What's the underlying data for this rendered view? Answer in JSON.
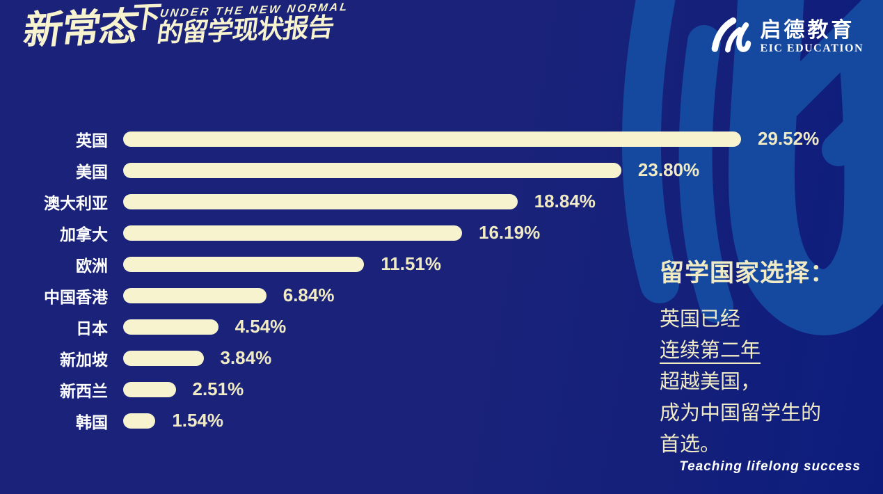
{
  "header": {
    "title_part1": "新常态",
    "title_part2": "下",
    "subtitle_en": "UNDER THE NEW NORMAL",
    "title_part3": "的留学现状报告"
  },
  "logo": {
    "name_cn": "启德教育",
    "name_en": "EIC EDUCATION"
  },
  "chart_data": {
    "type": "bar",
    "orientation": "horizontal",
    "categories": [
      "英国",
      "美国",
      "澳大利亚",
      "加拿大",
      "欧洲",
      "中国香港",
      "日本",
      "新加坡",
      "新西兰",
      "韩国"
    ],
    "values": [
      29.52,
      23.8,
      18.84,
      16.19,
      11.51,
      6.84,
      4.54,
      3.84,
      2.51,
      1.54
    ],
    "value_labels": [
      "29.52%",
      "23.80%",
      "18.84%",
      "16.19%",
      "11.51%",
      "6.84%",
      "4.54%",
      "3.84%",
      "2.51%",
      "1.54%"
    ],
    "xlim": [
      0,
      30
    ],
    "grid": false,
    "legend": "none",
    "bar_color": "#f7f3cf",
    "label_color": "#ffffff",
    "value_color": "#f0ebc4"
  },
  "aside": {
    "title": "留学国家选择：",
    "lines": [
      {
        "text": "英国已经",
        "underline": false
      },
      {
        "text": "连续第二年",
        "underline": true
      },
      {
        "text": "超越美国，",
        "underline": false
      },
      {
        "text": "成为中国留学生的",
        "underline": false
      },
      {
        "text": "首选。",
        "underline": false
      }
    ]
  },
  "footer": {
    "tagline": "Teaching lifelong success"
  },
  "colors": {
    "background": "#1a2379",
    "background_right": "#0d1c7c",
    "accent_blue": "#15499f",
    "cream": "#f7f3cf",
    "cream_text": "#f0ebc4",
    "white": "#ffffff"
  }
}
